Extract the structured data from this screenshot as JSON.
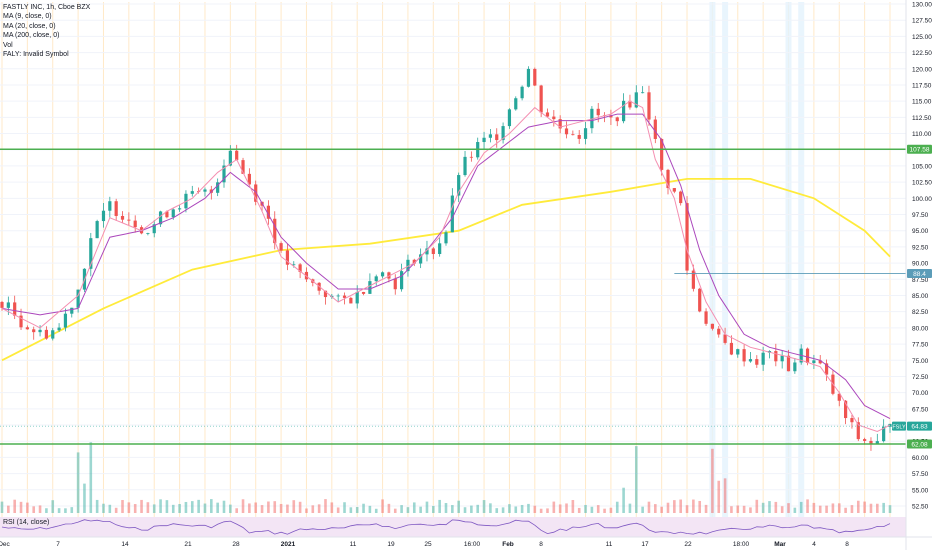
{
  "legend": {
    "symbol_line": "FASTLY INC, 1h, Cboe BZX",
    "ma9": "MA (9, close, 0)",
    "ma20": "MA (20, close, 0)",
    "ma200": "MA (200, close, 0)",
    "vol": "Vol",
    "invalid": "FALY: Invalid Symbol"
  },
  "rsi_label": "RSI (14, close)",
  "colors": {
    "up": "#26a69a",
    "down": "#ef5350",
    "ma200": "#ffeb3b",
    "ma9": "#f48fb1",
    "ma20": "#ab47bc",
    "hline": "#4caf50",
    "grid_orange": "#ffe0b2",
    "rsi_band": "#f3e5f5"
  },
  "price_axis": {
    "ticks": [
      "130.00",
      "127.50",
      "125.00",
      "122.50",
      "120.00",
      "117.50",
      "115.00",
      "112.50",
      "110.00",
      "107.50",
      "105.00",
      "102.50",
      "100.00",
      "97.50",
      "95.00",
      "92.50",
      "90.00",
      "87.50",
      "85.00",
      "82.50",
      "80.00",
      "77.50",
      "75.00",
      "72.50",
      "70.00",
      "67.50",
      "65.00",
      "62.50",
      "60.00",
      "57.50",
      "55.00",
      "52.50"
    ],
    "ylim": [
      51.5,
      130.5
    ],
    "badges": {
      "upper_line": "107.58",
      "ref_line": "88.4",
      "last": "64.83",
      "symbol": "FSLY",
      "lower_line": "62.08"
    }
  },
  "time_axis": {
    "labels": [
      "Dec",
      "7",
      "14",
      "21",
      "28",
      "2021",
      "11",
      "19",
      "25",
      "16:00",
      "Feb",
      "8",
      "11",
      "17",
      "22",
      "18:00",
      "Mar",
      "4",
      "8"
    ]
  },
  "chart_data": {
    "type": "candlestick",
    "title": "FASTLY INC, 1h, Cboe BZX",
    "xlabel": "",
    "ylabel": "",
    "ylim": [
      51.5,
      130.5
    ],
    "horizontal_lines": [
      107.58,
      62.08,
      88.4
    ],
    "series_anchors": {
      "close_path": [
        [
          0,
          84
        ],
        [
          3,
          81
        ],
        [
          6,
          79
        ],
        [
          9,
          80
        ],
        [
          12,
          86
        ],
        [
          14,
          94
        ],
        [
          17,
          99
        ],
        [
          20,
          97
        ],
        [
          23,
          95
        ],
        [
          26,
          98
        ],
        [
          29,
          100
        ],
        [
          33,
          101
        ],
        [
          36,
          108
        ],
        [
          38,
          104
        ],
        [
          42,
          97
        ],
        [
          44,
          91
        ],
        [
          47,
          88
        ],
        [
          50,
          86
        ],
        [
          53,
          84
        ],
        [
          56,
          85
        ],
        [
          59,
          89
        ],
        [
          62,
          87
        ],
        [
          65,
          91
        ],
        [
          68,
          92
        ],
        [
          70,
          95
        ],
        [
          72,
          104
        ],
        [
          75,
          108
        ],
        [
          78,
          110
        ],
        [
          81,
          116
        ],
        [
          83,
          120
        ],
        [
          85,
          114
        ],
        [
          88,
          111
        ],
        [
          91,
          110
        ],
        [
          93,
          113
        ],
        [
          96,
          112
        ],
        [
          99,
          115
        ],
        [
          101,
          117
        ],
        [
          102,
          113
        ],
        [
          104,
          104
        ],
        [
          107,
          99
        ],
        [
          108,
          89
        ],
        [
          110,
          83
        ],
        [
          113,
          78
        ],
        [
          116,
          76
        ],
        [
          119,
          75
        ],
        [
          121,
          76
        ],
        [
          124,
          74
        ],
        [
          126,
          76
        ],
        [
          129,
          74
        ],
        [
          131,
          70
        ],
        [
          133,
          66
        ],
        [
          135,
          63
        ],
        [
          138,
          62
        ],
        [
          140,
          66
        ]
      ],
      "ma200": [
        [
          0,
          75
        ],
        [
          16,
          83
        ],
        [
          30,
          89
        ],
        [
          44,
          92
        ],
        [
          58,
          93
        ],
        [
          72,
          95
        ],
        [
          82,
          99
        ],
        [
          96,
          101
        ],
        [
          108,
          103
        ],
        [
          118,
          103
        ],
        [
          128,
          100
        ],
        [
          136,
          95
        ],
        [
          140,
          91
        ]
      ],
      "ma9": [
        [
          0,
          83
        ],
        [
          6,
          80
        ],
        [
          12,
          85
        ],
        [
          17,
          97
        ],
        [
          22,
          95
        ],
        [
          26,
          98
        ],
        [
          30,
          100
        ],
        [
          34,
          104
        ],
        [
          37,
          106
        ],
        [
          41,
          98
        ],
        [
          44,
          91
        ],
        [
          48,
          88
        ],
        [
          53,
          84
        ],
        [
          57,
          86
        ],
        [
          61,
          88
        ],
        [
          65,
          90
        ],
        [
          69,
          94
        ],
        [
          72,
          101
        ],
        [
          76,
          107
        ],
        [
          80,
          110
        ],
        [
          84,
          114
        ],
        [
          88,
          111
        ],
        [
          92,
          112
        ],
        [
          96,
          113
        ],
        [
          99,
          115
        ],
        [
          101,
          114
        ],
        [
          103,
          106
        ],
        [
          106,
          100
        ],
        [
          108,
          92
        ],
        [
          111,
          84
        ],
        [
          114,
          79
        ],
        [
          118,
          77
        ],
        [
          122,
          76
        ],
        [
          126,
          75
        ],
        [
          129,
          74
        ],
        [
          132,
          70
        ],
        [
          135,
          65
        ],
        [
          138,
          64
        ],
        [
          140,
          65
        ]
      ],
      "ma20": [
        [
          0,
          83
        ],
        [
          6,
          82
        ],
        [
          12,
          83
        ],
        [
          17,
          94
        ],
        [
          22,
          95
        ],
        [
          27,
          97
        ],
        [
          32,
          100
        ],
        [
          36,
          104
        ],
        [
          40,
          101
        ],
        [
          44,
          94
        ],
        [
          48,
          90
        ],
        [
          53,
          86
        ],
        [
          58,
          86
        ],
        [
          63,
          88
        ],
        [
          67,
          92
        ],
        [
          71,
          97
        ],
        [
          75,
          105
        ],
        [
          79,
          108
        ],
        [
          83,
          111
        ],
        [
          88,
          112
        ],
        [
          93,
          112
        ],
        [
          97,
          113
        ],
        [
          101,
          113
        ],
        [
          104,
          109
        ],
        [
          107,
          102
        ],
        [
          110,
          92
        ],
        [
          113,
          85
        ],
        [
          117,
          79
        ],
        [
          121,
          77
        ],
        [
          125,
          76
        ],
        [
          129,
          75
        ],
        [
          133,
          72
        ],
        [
          136,
          68
        ],
        [
          140,
          66
        ]
      ]
    },
    "n_bars": 141
  }
}
